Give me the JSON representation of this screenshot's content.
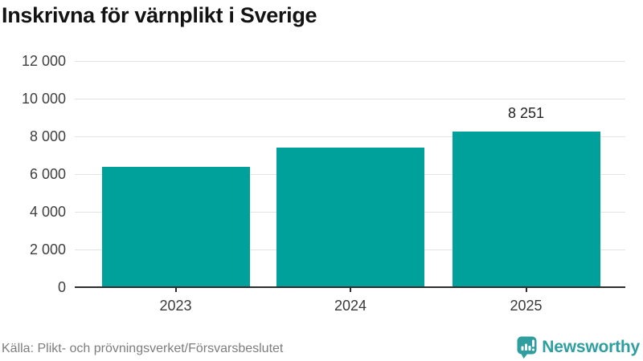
{
  "title": "Inskrivna för värnplikt i Sverige",
  "footer": {
    "source": "Källa: Plikt- och prövningsverket/Försvarsbeslutet"
  },
  "branding": {
    "name": "Newsworthy",
    "icon": "newsworthy-speech-bubble-bar-chart-icon",
    "color": "#2f9e9e"
  },
  "colors": {
    "bar": "#00a19a",
    "gridline": "#e3e3e3",
    "axis": "#2e2e2e",
    "tick_label": "#3f3f3f",
    "title": "#131313",
    "source_text": "#7d7d7d"
  },
  "chart_data": {
    "type": "bar",
    "title": "Inskrivna för värnplikt i Sverige",
    "categories": [
      "2023",
      "2024",
      "2025"
    ],
    "values": [
      6400,
      7400,
      8251
    ],
    "value_labels": [
      null,
      null,
      "8 251"
    ],
    "xlabel": "",
    "ylabel": "",
    "ylim": [
      0,
      12000
    ],
    "ytick_step": 2000,
    "ytick_labels": [
      "0",
      "2 000",
      "4 000",
      "6 000",
      "8 000",
      "10 000",
      "12 000"
    ],
    "grid": true,
    "legend": false,
    "bar_color": "#00a19a"
  }
}
